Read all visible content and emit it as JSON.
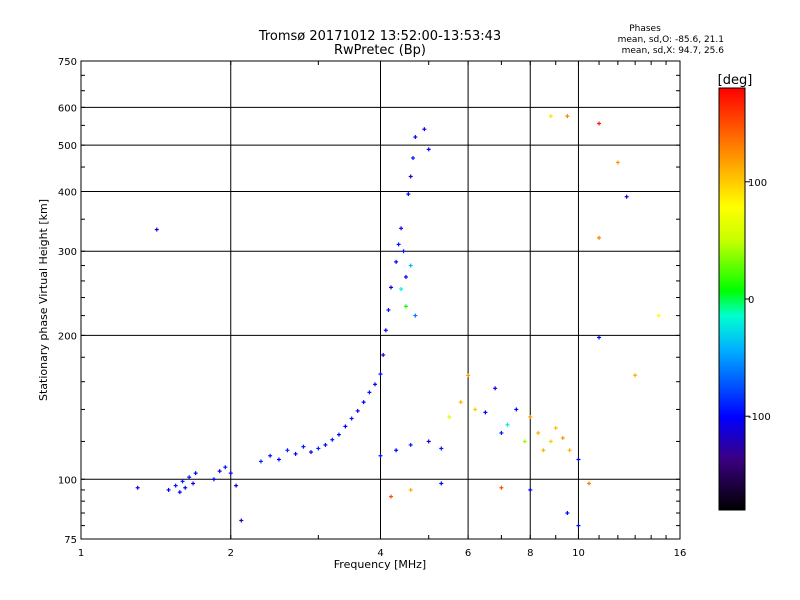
{
  "chart_data": {
    "type": "scatter",
    "title": "Tromsø 20171012 13:52:00-13:53:43",
    "subtitle": "RwPretec (Bp)",
    "xlabel": "Frequency [MHz]",
    "ylabel": "Stationary phase Virtual Height [km]",
    "x_scale": "log",
    "y_scale": "log",
    "xlim": [
      1,
      16
    ],
    "ylim": [
      75,
      750
    ],
    "x_ticks": [
      1,
      2,
      4,
      6,
      8,
      10,
      16
    ],
    "y_ticks": [
      75,
      100,
      200,
      300,
      400,
      500,
      600,
      750
    ],
    "grid": true,
    "info_box": {
      "title": "Phases",
      "line1": "mean, sd,O: -85.6, 21.1",
      "line2": "mean, sd,X:  94.7, 25.6"
    },
    "colorbar": {
      "label": "[deg]",
      "range": [
        -180,
        180
      ],
      "ticks": [
        100,
        0,
        -100
      ],
      "tick_labels": [
        "100",
        "0",
        "-100"
      ]
    },
    "series": [
      {
        "points": [
          [
            1.3,
            96,
            -110
          ],
          [
            1.42,
            333,
            -110
          ],
          [
            1.5,
            95,
            -100
          ],
          [
            1.55,
            97,
            -95
          ],
          [
            1.58,
            94,
            -105
          ],
          [
            1.6,
            99,
            -90
          ],
          [
            1.62,
            96,
            -100
          ],
          [
            1.65,
            101,
            -95
          ],
          [
            1.68,
            98,
            -110
          ],
          [
            1.7,
            103,
            -100
          ],
          [
            1.85,
            100,
            -100
          ],
          [
            1.9,
            104,
            -110
          ],
          [
            1.95,
            106,
            -95
          ],
          [
            2.0,
            103,
            -100
          ],
          [
            2.05,
            97,
            -110
          ],
          [
            2.1,
            82,
            -120
          ],
          [
            2.3,
            109,
            -85
          ],
          [
            2.4,
            112,
            -95
          ],
          [
            2.5,
            110,
            -100
          ],
          [
            2.6,
            115,
            -90
          ],
          [
            2.7,
            113,
            -100
          ],
          [
            2.8,
            117,
            -95
          ],
          [
            2.9,
            114,
            -105
          ],
          [
            3.0,
            116,
            -90
          ],
          [
            3.1,
            118,
            -100
          ],
          [
            3.2,
            121,
            -95
          ],
          [
            3.3,
            124,
            -105
          ],
          [
            3.4,
            129,
            -100
          ],
          [
            3.5,
            134,
            -95
          ],
          [
            3.6,
            139,
            -110
          ],
          [
            3.7,
            145,
            -100
          ],
          [
            3.8,
            152,
            -95
          ],
          [
            3.9,
            158,
            -105
          ],
          [
            4.0,
            166,
            -100
          ],
          [
            4.05,
            182,
            -110
          ],
          [
            4.1,
            205,
            -100
          ],
          [
            4.15,
            226,
            -95
          ],
          [
            4.2,
            252,
            -105
          ],
          [
            4.3,
            285,
            -100
          ],
          [
            4.35,
            310,
            -95
          ],
          [
            4.4,
            335,
            -110
          ],
          [
            4.45,
            300,
            -90
          ],
          [
            4.5,
            265,
            -100
          ],
          [
            4.55,
            395,
            -100
          ],
          [
            4.6,
            430,
            -110
          ],
          [
            4.65,
            470,
            -95
          ],
          [
            4.7,
            520,
            -100
          ],
          [
            4.9,
            540,
            -110
          ],
          [
            5.0,
            490,
            -100
          ],
          [
            4.4,
            250,
            -20
          ],
          [
            4.5,
            230,
            10
          ],
          [
            4.6,
            280,
            -40
          ],
          [
            4.7,
            220,
            -60
          ],
          [
            4.0,
            112,
            -95
          ],
          [
            4.3,
            115,
            -100
          ],
          [
            4.6,
            118,
            -90
          ],
          [
            5.0,
            120,
            -110
          ],
          [
            5.3,
            116,
            -95
          ],
          [
            4.2,
            92,
            150
          ],
          [
            4.6,
            95,
            110
          ],
          [
            5.5,
            135,
            60
          ],
          [
            5.8,
            145,
            110
          ],
          [
            6.0,
            165,
            120
          ],
          [
            6.2,
            140,
            100
          ],
          [
            6.5,
            138,
            -100
          ],
          [
            6.8,
            155,
            -110
          ],
          [
            7.0,
            125,
            -95
          ],
          [
            7.2,
            130,
            -20
          ],
          [
            7.5,
            140,
            -100
          ],
          [
            7.8,
            120,
            40
          ],
          [
            8.0,
            135,
            120
          ],
          [
            8.3,
            125,
            110
          ],
          [
            8.5,
            115,
            110
          ],
          [
            8.8,
            120,
            100
          ],
          [
            9.0,
            128,
            105
          ],
          [
            9.3,
            122,
            120
          ],
          [
            9.6,
            115,
            110
          ],
          [
            10.0,
            110,
            -100
          ],
          [
            8.8,
            575,
            90
          ],
          [
            9.5,
            575,
            130
          ],
          [
            11.0,
            555,
            170
          ],
          [
            11.0,
            320,
            130
          ],
          [
            12.0,
            460,
            120
          ],
          [
            12.5,
            390,
            -110
          ],
          [
            11.0,
            198,
            -100
          ],
          [
            10.5,
            98,
            130
          ],
          [
            9.5,
            85,
            -100
          ],
          [
            10.0,
            80,
            -100
          ],
          [
            8.0,
            95,
            -100
          ],
          [
            7.0,
            96,
            150
          ],
          [
            5.3,
            98,
            -100
          ],
          [
            14.5,
            220,
            80
          ],
          [
            13.0,
            165,
            110
          ]
        ]
      }
    ]
  }
}
